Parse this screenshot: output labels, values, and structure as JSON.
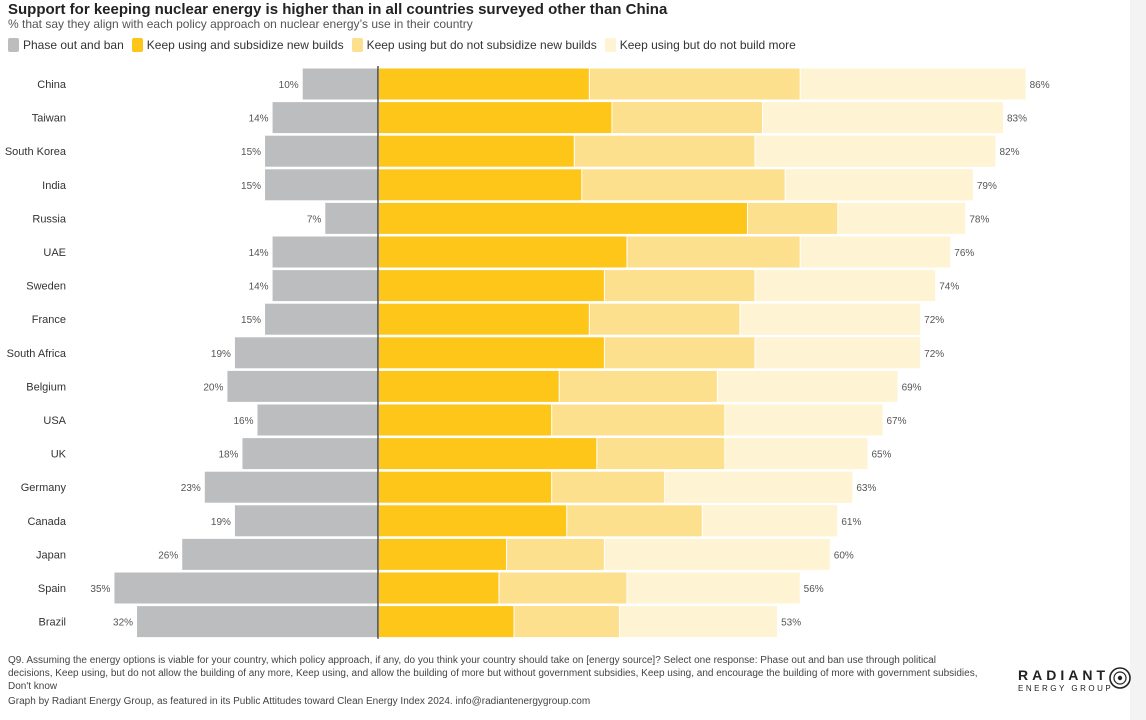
{
  "header": {
    "title": "Support for keeping nuclear energy is higher than in all countries surveyed other than China",
    "subtitle": "% that say they align with each policy approach on nuclear energy’s use in their country"
  },
  "legend": [
    {
      "label": "Phase out and ban",
      "color": "#bcbdbf"
    },
    {
      "label": "Keep using and subsidize new builds",
      "color": "#fec619"
    },
    {
      "label": "Keep using but do not subsidize new builds",
      "color": "#fde08d"
    },
    {
      "label": "Keep using but do not build more",
      "color": "#fef3d2"
    }
  ],
  "chart_data": {
    "type": "bar",
    "orientation": "horizontal-diverging-stacked",
    "categories": [
      "China",
      "Taiwan",
      "South Korea",
      "India",
      "Russia",
      "UAE",
      "Sweden",
      "France",
      "South Africa",
      "Belgium",
      "USA",
      "UK",
      "Germany",
      "Canada",
      "Japan",
      "Spain",
      "Brazil"
    ],
    "series": [
      {
        "name": "Phase out and ban",
        "color": "#bcbdbf",
        "values": [
          10,
          14,
          15,
          15,
          7,
          14,
          14,
          15,
          19,
          20,
          16,
          18,
          23,
          19,
          26,
          35,
          32
        ]
      },
      {
        "name": "Keep using and subsidize new builds",
        "color": "#fec619",
        "values": [
          28,
          31,
          26,
          27,
          49,
          33,
          30,
          28,
          30,
          24,
          23,
          29,
          23,
          25,
          17,
          16,
          18
        ]
      },
      {
        "name": "Keep using but do not subsidize new builds",
        "color": "#fde08d",
        "values": [
          28,
          20,
          24,
          27,
          12,
          23,
          20,
          20,
          20,
          21,
          23,
          17,
          15,
          18,
          13,
          17,
          14
        ]
      },
      {
        "name": "Keep using but do not build more",
        "color": "#fef3d2",
        "values": [
          30,
          32,
          32,
          25,
          17,
          20,
          24,
          24,
          22,
          24,
          21,
          19,
          25,
          18,
          30,
          23,
          21
        ]
      }
    ],
    "left_labels": [
      "10%",
      "14%",
      "15%",
      "15%",
      "7%",
      "14%",
      "14%",
      "15%",
      "19%",
      "20%",
      "16%",
      "18%",
      "23%",
      "19%",
      "26%",
      "35%",
      "32%"
    ],
    "right_labels": [
      "86%",
      "83%",
      "82%",
      "79%",
      "78%",
      "76%",
      "74%",
      "72%",
      "72%",
      "69%",
      "67%",
      "65%",
      "63%",
      "61%",
      "60%",
      "56%",
      "53%"
    ]
  },
  "footer": {
    "note": "Q9. Assuming the energy options is viable for your country, which policy approach, if any, do you think your country should take on [energy source]? Select one response: Phase out and ban use through political decisions, Keep using, but do not allow the building of any more, Keep using, and allow the building of more but without government subsidies, Keep using, and encourage the building of more with government subsidies, Don't know",
    "credit": "Graph by Radiant Energy Group, as featured in its Public Attitudes toward Clean Energy Index 2024. info@radiantenergygroup.com"
  },
  "brand": {
    "name": "RADIANT",
    "sub": "ENERGY GROUP",
    "icon": "radiant-logo-icon"
  }
}
